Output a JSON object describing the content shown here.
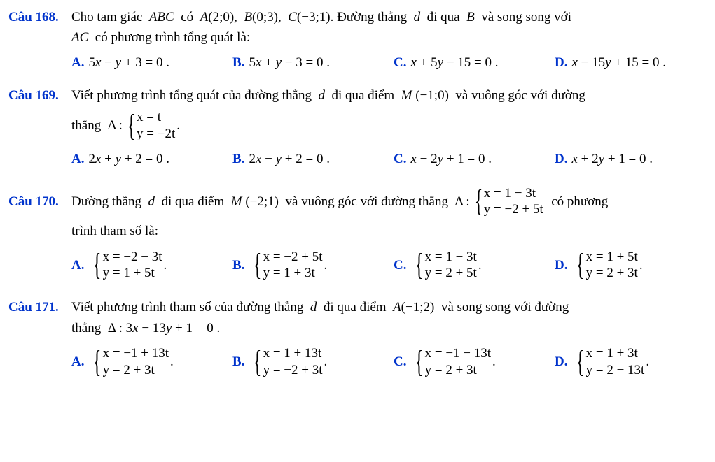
{
  "colors": {
    "heading": "#0033cc",
    "text": "#000000",
    "background": "#ffffff"
  },
  "typography": {
    "fontFamily": "Times New Roman",
    "baseFontSize": 19
  },
  "questions": [
    {
      "id": "q168",
      "label": "Câu 168.",
      "promptLine1": "Cho tam giác  ABC  có  A(2;0),  B(0;3),  C(−3;1). Đường thẳng  d  đi qua  B  và song song với",
      "promptLine2": "AC  có phương trình tổng quát là:",
      "options": {
        "A": "5x − y + 3 = 0 .",
        "B": "5x + y − 3 = 0 .",
        "C": "x + 5y − 15 = 0 .",
        "D": "x − 15y + 15 = 0 ."
      }
    },
    {
      "id": "q169",
      "label": "Câu 169.",
      "promptLine1": "Viết phương trình tổng quát của đường thẳng  d  đi qua điểm  M (−1;0)  và vuông góc với đường",
      "system_prefix": "thẳng  Δ :",
      "system": {
        "line1": "x = t",
        "line2": "y = −2t"
      },
      "system_suffix": ".",
      "options": {
        "A": "2x + y + 2 = 0 .",
        "B": "2x − y + 2 = 0 .",
        "C": "x − 2y + 1 = 0 .",
        "D": "x + 2y + 1 = 0 ."
      }
    },
    {
      "id": "q170",
      "label": "Câu 170.",
      "promptLine1_pre": "Đường thẳng  d  đi qua điểm  M (−2;1)  và vuông góc với đường thẳng  Δ :",
      "system": {
        "line1": "x = 1 − 3t",
        "line2": "y = −2 + 5t"
      },
      "promptLine1_post": "  có phương",
      "promptLine2": "trình tham số là:",
      "options": {
        "A": {
          "line1": "x = −2 − 3t",
          "line2": "y = 1 + 5t"
        },
        "B": {
          "line1": "x = −2 + 5t",
          "line2": "y = 1 + 3t"
        },
        "C": {
          "line1": "x = 1 − 3t",
          "line2": "y = 2 + 5t"
        },
        "D": {
          "line1": "x = 1 + 5t",
          "line2": "y = 2 + 3t"
        }
      }
    },
    {
      "id": "q171",
      "label": "Câu 171.",
      "promptLine1": "Viết phương trình tham số của đường thẳng  d  đi qua điểm  A(−1;2)  và song song với đường",
      "promptLine2": "thẳng  Δ : 3x − 13y + 1 = 0 .",
      "options": {
        "A": {
          "line1": "x = −1 + 13t",
          "line2": "y = 2 + 3t"
        },
        "B": {
          "line1": "x = 1 + 13t",
          "line2": "y = −2 + 3t"
        },
        "C": {
          "line1": "x = −1 − 13t",
          "line2": "y = 2 + 3t"
        },
        "D": {
          "line1": "x = 1 + 3t",
          "line2": "y = 2 − 13t"
        }
      }
    }
  ]
}
